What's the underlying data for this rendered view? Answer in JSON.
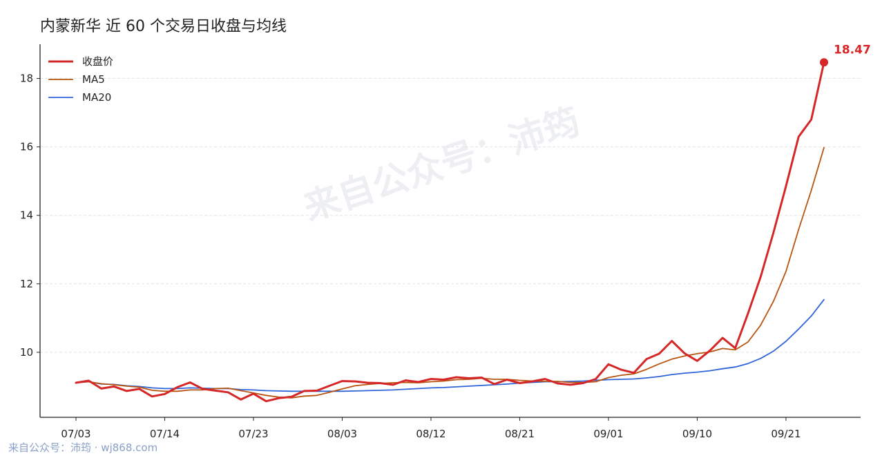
{
  "title": "内蒙新华 近 60 个交易日收盘与均线",
  "watermark": "来自公众号：沛筠",
  "footer": "来自公众号：沛筠 · wj868.com",
  "colors": {
    "close": "#d62728",
    "ma5": "#b8540f",
    "ma20": "#2f64d9"
  },
  "chart_data": {
    "type": "line",
    "title": "内蒙新华 近 60 个交易日收盘与均线",
    "xlabel": "",
    "ylabel": "",
    "ylim": [
      8.1,
      19.0
    ],
    "yticks": [
      10,
      12,
      14,
      16,
      18
    ],
    "xtick_labels": [
      "07/03",
      "07/14",
      "07/23",
      "08/03",
      "08/12",
      "08/21",
      "09/01",
      "09/10",
      "09/21"
    ],
    "xtick_indices": [
      0,
      7,
      14,
      21,
      28,
      35,
      42,
      49,
      56
    ],
    "grid": "horizontal dashed",
    "legend": "top-left",
    "end_label": "18.47",
    "series": [
      {
        "name": "收盘价",
        "key": "close",
        "values": [
          9.11,
          9.17,
          8.94,
          9.0,
          8.87,
          8.93,
          8.71,
          8.78,
          8.98,
          9.12,
          8.93,
          8.88,
          8.83,
          8.62,
          8.79,
          8.57,
          8.66,
          8.7,
          8.87,
          8.88,
          9.02,
          9.16,
          9.15,
          9.11,
          9.1,
          9.05,
          9.18,
          9.13,
          9.22,
          9.2,
          9.27,
          9.24,
          9.26,
          9.07,
          9.2,
          9.1,
          9.15,
          9.22,
          9.09,
          9.05,
          9.1,
          9.22,
          9.65,
          9.49,
          9.4,
          9.8,
          9.96,
          10.33,
          9.97,
          9.75,
          10.05,
          10.42,
          10.12,
          11.13,
          12.2,
          13.48,
          14.85,
          16.3,
          16.8,
          18.47
        ]
      },
      {
        "name": "MA5",
        "key": "ma5",
        "values": [
          9.11,
          9.14,
          9.08,
          9.05,
          9.01,
          8.98,
          8.89,
          8.86,
          8.86,
          8.9,
          8.9,
          8.94,
          8.95,
          8.88,
          8.81,
          8.74,
          8.69,
          8.67,
          8.72,
          8.74,
          8.83,
          8.93,
          9.02,
          9.06,
          9.09,
          9.11,
          9.12,
          9.11,
          9.14,
          9.16,
          9.2,
          9.21,
          9.24,
          9.21,
          9.21,
          9.18,
          9.16,
          9.15,
          9.15,
          9.12,
          9.12,
          9.14,
          9.26,
          9.33,
          9.37,
          9.5,
          9.66,
          9.8,
          9.89,
          9.96,
          10.01,
          10.11,
          10.07,
          10.3,
          10.79,
          11.48,
          12.36,
          13.59,
          14.73,
          15.98
        ]
      },
      {
        "name": "MA20",
        "key": "ma20",
        "values": [
          9.11,
          9.14,
          9.07,
          9.06,
          9.02,
          9.0,
          8.96,
          8.94,
          8.94,
          8.96,
          8.95,
          8.94,
          8.94,
          8.91,
          8.9,
          8.88,
          8.87,
          8.86,
          8.86,
          8.86,
          8.86,
          8.86,
          8.87,
          8.88,
          8.89,
          8.9,
          8.92,
          8.94,
          8.96,
          8.97,
          8.99,
          9.01,
          9.03,
          9.05,
          9.07,
          9.1,
          9.12,
          9.14,
          9.14,
          9.15,
          9.16,
          9.18,
          9.2,
          9.21,
          9.22,
          9.25,
          9.29,
          9.35,
          9.39,
          9.42,
          9.46,
          9.52,
          9.57,
          9.67,
          9.82,
          10.03,
          10.32,
          10.68,
          11.06,
          11.54
        ]
      }
    ]
  }
}
